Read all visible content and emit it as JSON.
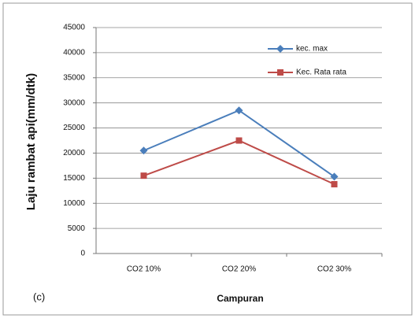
{
  "chart_data": {
    "type": "line",
    "annotation": "(c)",
    "x_label": "Campuran",
    "y_label": "Laju rambat api(mm/dtk)",
    "categories": [
      "CO2 10%",
      "CO2 20%",
      "CO2 30%"
    ],
    "series": [
      {
        "name": "kec. max",
        "color": "#4a7ebb",
        "marker": "diamond",
        "values": [
          20500,
          28500,
          15300
        ]
      },
      {
        "name": "Kec. Rata rata",
        "color": "#be4b48",
        "marker": "square",
        "values": [
          15500,
          22500,
          13800
        ]
      }
    ],
    "ylim": [
      0,
      45000
    ],
    "yticks": [
      0,
      5000,
      10000,
      15000,
      20000,
      25000,
      30000,
      35000,
      40000,
      45000
    ],
    "grid": true,
    "legend": "upper right"
  }
}
